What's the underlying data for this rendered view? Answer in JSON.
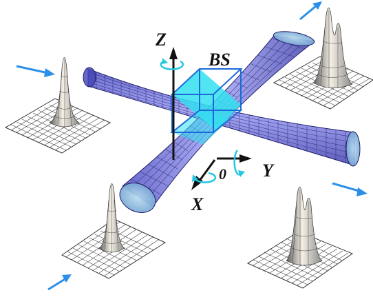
{
  "labels": {
    "z_axis": "Z",
    "y_axis": "Y",
    "x_axis": "X",
    "origin": "0",
    "beam_splitter": "BS"
  },
  "colors": {
    "beam_fill": "#6f6fe8",
    "beam_mesh": "#1f1f6a",
    "beam_cap": "#8fbfe0",
    "cube_edge": "#1a6ad9",
    "cube_face": "#33e0f0",
    "arrow_blue": "#2a8fe8",
    "rotation_cyan": "#22c7e0",
    "axis_black": "#111111",
    "peak_light": "#f2ece0",
    "peak_dark": "#6a6a6a",
    "grid_line": "#333333"
  },
  "icons": {
    "z_rotation": "rotation-arrow-icon",
    "y_rotation": "rotation-arrow-icon",
    "x_rotation": "rotation-arrow-icon",
    "input_arrow": "arrow-icon",
    "output_arrow": "arrow-icon"
  },
  "profiles": {
    "top_left": {
      "peaks": 1
    },
    "top_right": {
      "peaks": 2
    },
    "bottom_left": {
      "peaks": 1
    },
    "bottom_right": {
      "peaks": 2
    }
  }
}
